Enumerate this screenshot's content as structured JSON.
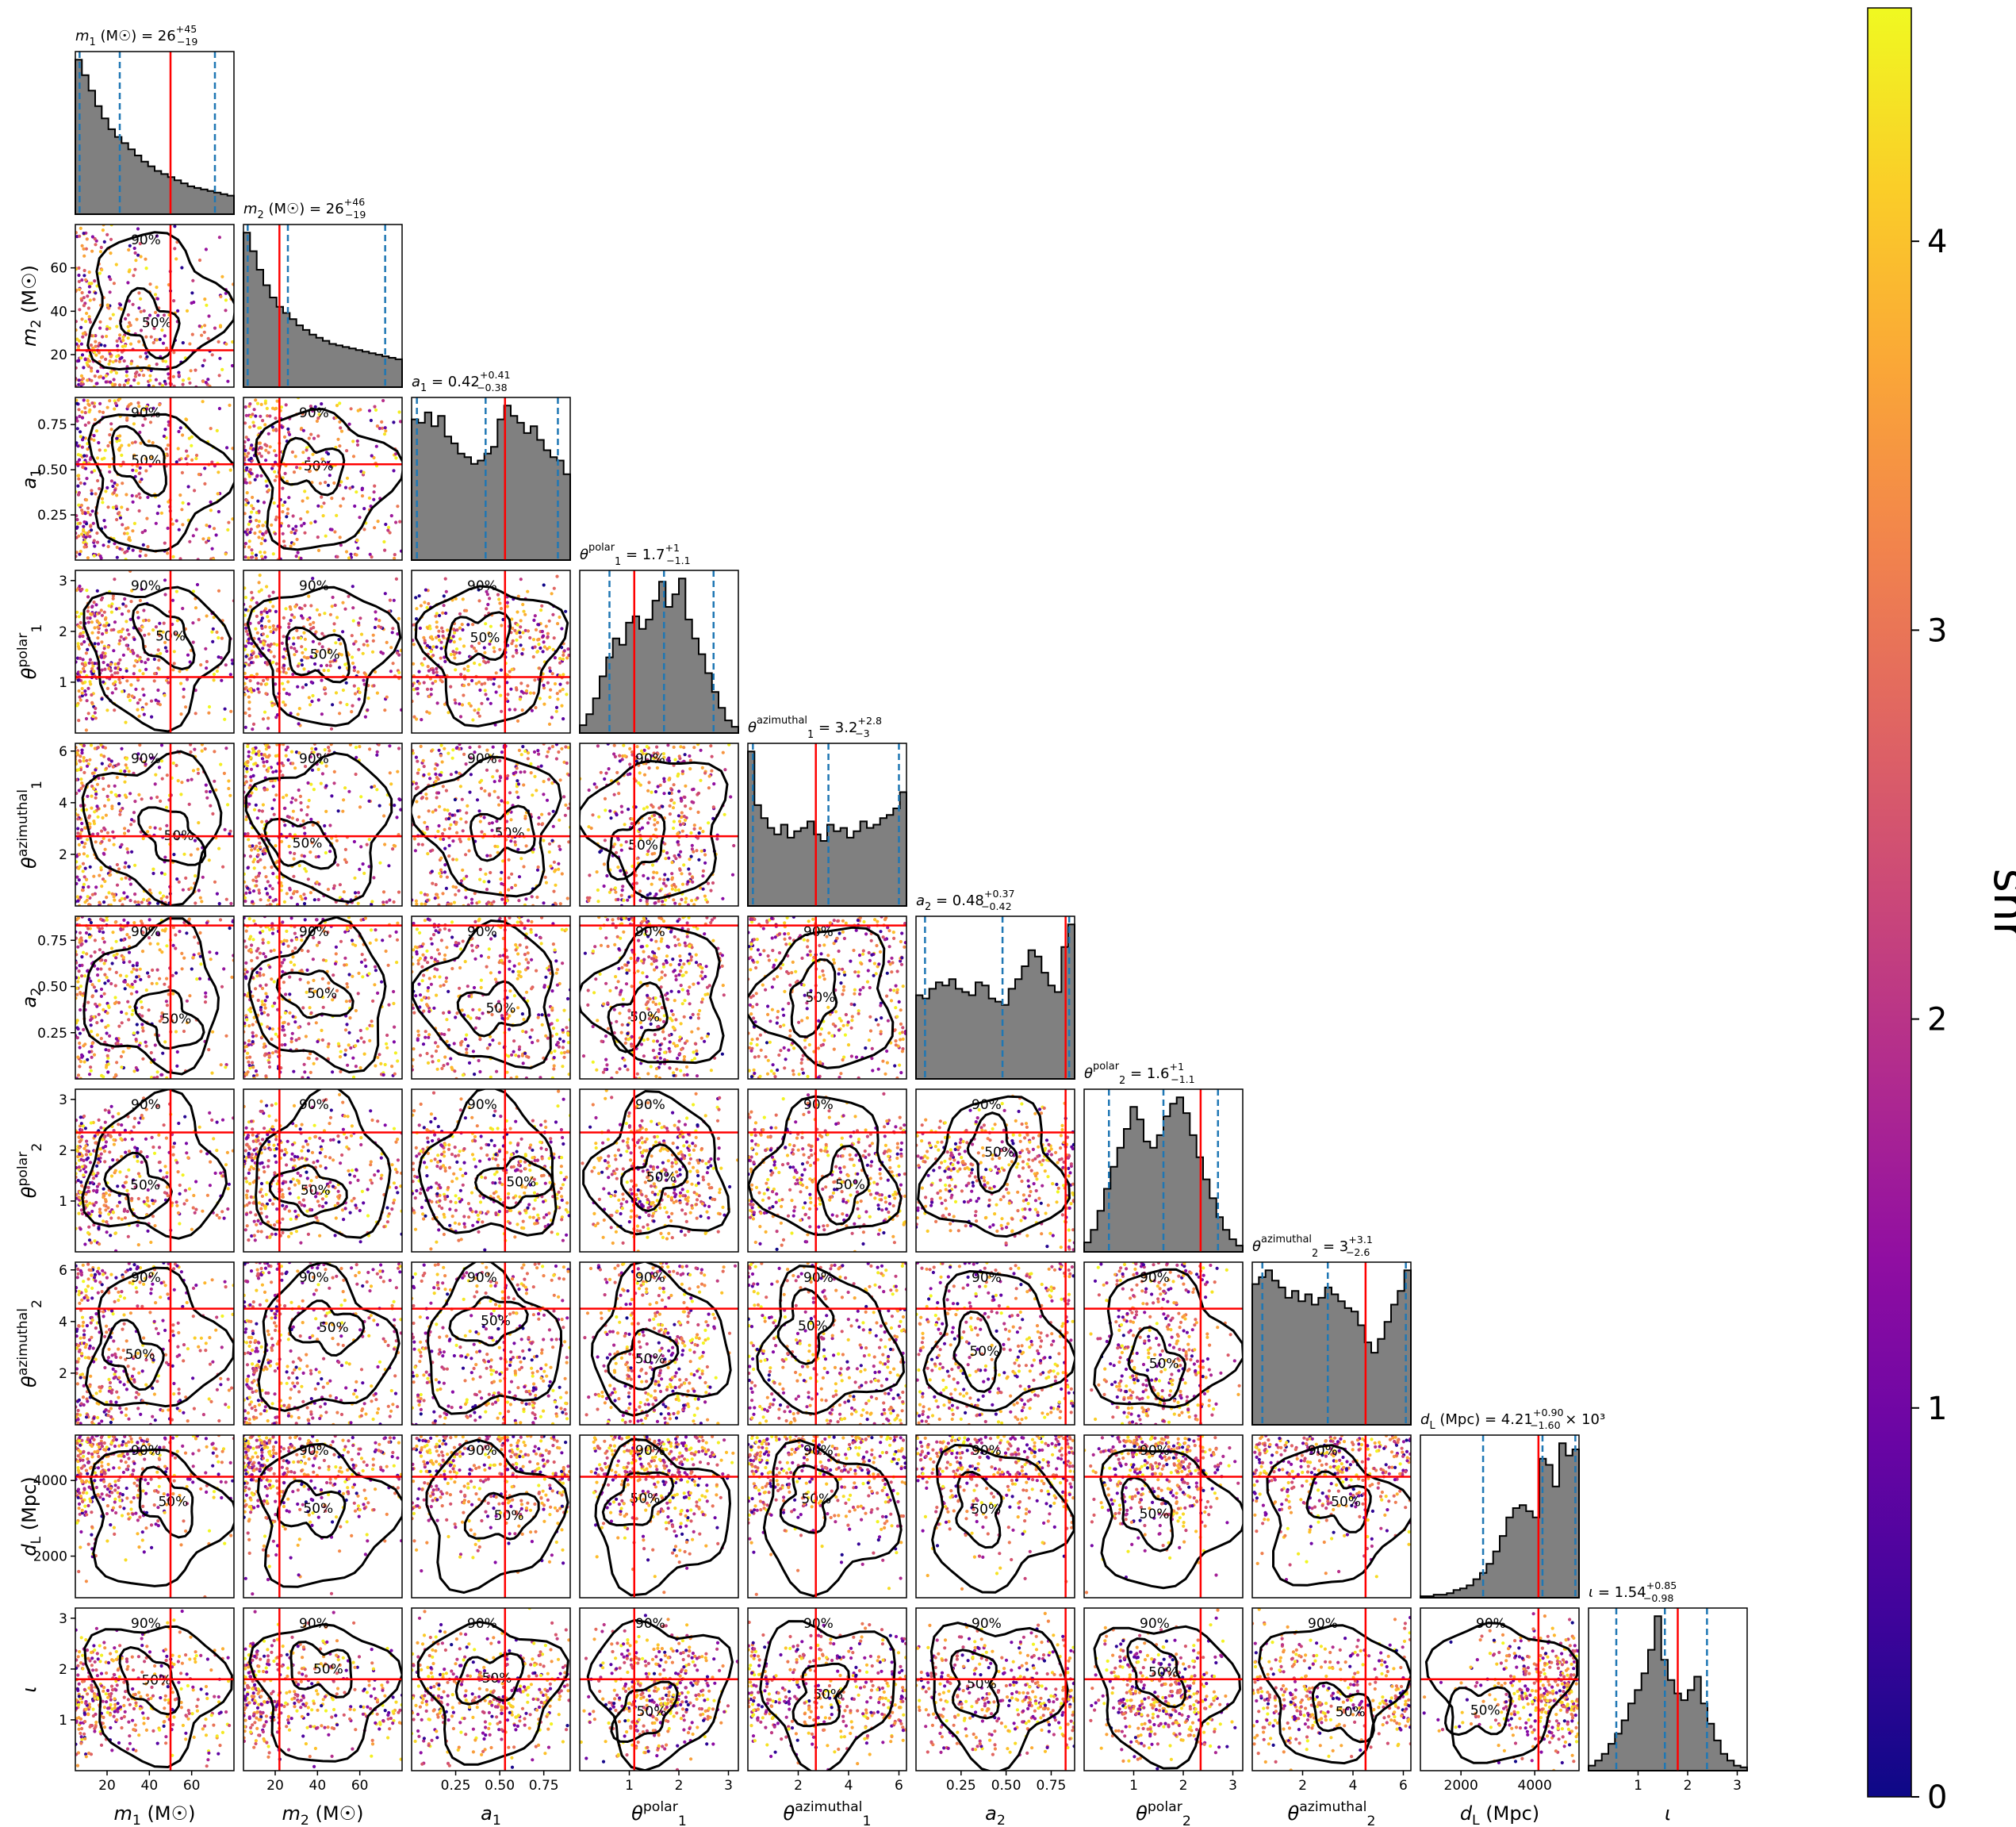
{
  "chart_data": {
    "type": "corner",
    "colormap": "plasma",
    "colors": {
      "histogram_fill": "#808080",
      "histogram_edge": "#000000",
      "truth_line": "#ff0000",
      "quantile_line": "#1f77b4",
      "contour": "#000000"
    },
    "colorbar": {
      "label": "snr",
      "range": [
        0,
        4.6
      ],
      "ticks": [
        "0",
        "1",
        "2",
        "3",
        "4"
      ]
    },
    "contour_levels": [
      "50%",
      "90%"
    ],
    "parameters": [
      {
        "key": "m1",
        "label": "m1 (M☉)",
        "label_main": "m",
        "label_sub": "1",
        "label_sup": "",
        "label_unit": " (M☉)",
        "title": "m1 (M☉) = 26 +45 −19",
        "title_main": "m",
        "title_sub": "1",
        "title_sup": "",
        "title_text": " (M☉) = 26",
        "title_plus": "+45",
        "title_minus": "−19",
        "title_suffix": "",
        "range": [
          5,
          80
        ],
        "ticks": [
          20,
          40,
          60
        ],
        "tick_labels": [
          "20",
          "40",
          "60"
        ],
        "truth": 50,
        "quantiles": [
          7,
          26,
          71
        ],
        "dist": "decreasing",
        "hist_shape": [
          100,
          90,
          80,
          70,
          62,
          55,
          50,
          46,
          42,
          38,
          34,
          31,
          28,
          26,
          24,
          22,
          20,
          18,
          17,
          16,
          15,
          14,
          13,
          12
        ]
      },
      {
        "key": "m2",
        "label": "m2 (M☉)",
        "label_main": "m",
        "label_sub": "2",
        "label_sup": "",
        "label_unit": " (M☉)",
        "title": "m2 (M☉) = 26 +46 −19",
        "title_main": "m",
        "title_sub": "2",
        "title_sup": "",
        "title_text": " (M☉) = 26",
        "title_plus": "+46",
        "title_minus": "−19",
        "title_suffix": "",
        "range": [
          5,
          80
        ],
        "ticks": [
          20,
          40,
          60
        ],
        "tick_labels": [
          "20",
          "40",
          "60"
        ],
        "truth": 22,
        "quantiles": [
          7,
          26,
          72
        ],
        "dist": "decreasing",
        "hist_shape": [
          100,
          88,
          76,
          66,
          58,
          52,
          48,
          44,
          40,
          37,
          34,
          32,
          30,
          28,
          27,
          26,
          25,
          24,
          23,
          22,
          21,
          20,
          19,
          18
        ]
      },
      {
        "key": "a1",
        "label": "a1",
        "label_main": "a",
        "label_sub": "1",
        "label_sup": "",
        "label_unit": "",
        "title": "a1 = 0.42 +0.41 −0.38",
        "title_main": "a",
        "title_sub": "1",
        "title_sup": "",
        "title_text": " = 0.42",
        "title_plus": "+0.41",
        "title_minus": "−0.38",
        "title_suffix": "",
        "range": [
          0,
          0.9
        ],
        "ticks": [
          0.25,
          0.5,
          0.75
        ],
        "tick_labels": [
          "0.25",
          "0.50",
          "0.75"
        ],
        "truth": 0.53,
        "quantiles": [
          0.03,
          0.42,
          0.83
        ],
        "dist": "uniform",
        "hist_shape": [
          82,
          80,
          86,
          78,
          84,
          72,
          68,
          62,
          60,
          56,
          58,
          62,
          66,
          82,
          90,
          84,
          80,
          74,
          78,
          70,
          64,
          60,
          58,
          50
        ]
      },
      {
        "key": "theta1_polar",
        "label": "θ1 polar",
        "label_main": "θ",
        "label_sub": "1",
        "label_sup": "polar",
        "label_unit": "",
        "title": "θ1 polar = 1.7 +1 −1.1",
        "title_main": "θ",
        "title_sub": "1",
        "title_sup": "polar",
        "title_text": " = 1.7",
        "title_plus": "+1",
        "title_minus": "−1.1",
        "title_suffix": "",
        "range": [
          0,
          3.2
        ],
        "ticks": [
          1,
          2,
          3
        ],
        "tick_labels": [
          "1",
          "2",
          "3"
        ],
        "truth": 1.1,
        "quantiles": [
          0.6,
          1.7,
          2.7
        ],
        "dist": "peaked",
        "hist_shape": [
          5,
          12,
          22,
          36,
          48,
          60,
          56,
          70,
          74,
          66,
          72,
          84,
          96,
          80,
          88,
          98,
          72,
          60,
          50,
          38,
          26,
          16,
          8,
          4
        ]
      },
      {
        "key": "theta1_azimuthal",
        "label": "θ1 azimuthal",
        "label_main": "θ",
        "label_sub": "1",
        "label_sup": "azimuthal",
        "label_unit": "",
        "title": "θ1 azimuthal = 3.2 +2.8 −3",
        "title_main": "θ",
        "title_sub": "1",
        "title_sup": "azimuthal",
        "title_text": " = 3.2",
        "title_plus": "+2.8",
        "title_minus": "−3",
        "title_suffix": "",
        "range": [
          0,
          6.3
        ],
        "ticks": [
          2,
          4,
          6
        ],
        "tick_labels": [
          "2",
          "4",
          "6"
        ],
        "truth": 2.7,
        "quantiles": [
          0.2,
          3.2,
          6.0
        ],
        "dist": "uniform",
        "hist_shape": [
          95,
          62,
          54,
          48,
          44,
          50,
          42,
          46,
          48,
          52,
          44,
          40,
          50,
          46,
          48,
          42,
          46,
          52,
          48,
          50,
          54,
          56,
          60,
          70
        ]
      },
      {
        "key": "a2",
        "label": "a2",
        "label_main": "a",
        "label_sub": "2",
        "label_sup": "",
        "label_unit": "",
        "title": "a2 = 0.48 +0.37 −0.42",
        "title_main": "a",
        "title_sub": "2",
        "title_sup": "",
        "title_text": " = 0.48",
        "title_plus": "+0.37",
        "title_minus": "−0.42",
        "title_suffix": "",
        "range": [
          0,
          0.88
        ],
        "ticks": [
          0.25,
          0.5,
          0.75
        ],
        "tick_labels": [
          "0.25",
          "0.50",
          "0.75"
        ],
        "truth": 0.83,
        "quantiles": [
          0.05,
          0.48,
          0.85
        ],
        "dist": "uniform",
        "hist_shape": [
          52,
          50,
          56,
          60,
          58,
          62,
          56,
          54,
          52,
          60,
          58,
          50,
          48,
          46,
          56,
          62,
          70,
          80,
          76,
          66,
          58,
          54,
          82,
          96
        ]
      },
      {
        "key": "theta2_polar",
        "label": "θ2 polar",
        "label_main": "θ",
        "label_sub": "2",
        "label_sup": "polar",
        "label_unit": "",
        "title": "θ2 polar = 1.6 +1 −1.1",
        "title_main": "θ",
        "title_sub": "2",
        "title_sup": "polar",
        "title_text": " = 1.6",
        "title_plus": "+1",
        "title_minus": "−1.1",
        "title_suffix": "",
        "range": [
          0,
          3.2
        ],
        "ticks": [
          1,
          2,
          3
        ],
        "tick_labels": [
          "1",
          "2",
          "3"
        ],
        "truth": 2.35,
        "quantiles": [
          0.5,
          1.6,
          2.7
        ],
        "dist": "peaked",
        "hist_shape": [
          6,
          14,
          26,
          40,
          54,
          66,
          78,
          92,
          84,
          70,
          66,
          74,
          86,
          94,
          98,
          88,
          74,
          60,
          46,
          34,
          22,
          14,
          8,
          4
        ]
      },
      {
        "key": "theta2_azimuthal",
        "label": "θ2 azimuthal",
        "label_main": "θ",
        "label_sub": "2",
        "label_sup": "azimuthal",
        "label_unit": "",
        "title": "θ2 azimuthal = 3 +3.1 −2.6",
        "title_main": "θ",
        "title_sub": "2",
        "title_sup": "azimuthal",
        "title_text": " = 3",
        "title_plus": "+3.1",
        "title_minus": "−2.6",
        "title_suffix": "",
        "range": [
          0,
          6.3
        ],
        "ticks": [
          2,
          4,
          6
        ],
        "tick_labels": [
          "2",
          "4",
          "6"
        ],
        "truth": 4.5,
        "quantiles": [
          0.4,
          3.0,
          6.1
        ],
        "dist": "uniform",
        "hist_shape": [
          82,
          86,
          90,
          84,
          80,
          74,
          78,
          72,
          76,
          70,
          74,
          80,
          76,
          72,
          68,
          66,
          58,
          48,
          42,
          50,
          60,
          70,
          78,
          90
        ]
      },
      {
        "key": "dL",
        "label": "dL (Mpc)",
        "label_main": "d",
        "label_sub": "L",
        "label_sup": "",
        "label_unit": " (Mpc)",
        "title": "dL (Mpc) = 4.21 +0.90 −1.60 ×10³",
        "title_main": "d",
        "title_sub": "L",
        "title_sup": "",
        "title_text": " (Mpc) = 4.21",
        "title_plus": "+0.90",
        "title_minus": "−1.60",
        "title_suffix": " × 10³",
        "range": [
          900,
          5200
        ],
        "ticks": [
          2000,
          4000
        ],
        "tick_labels": [
          "2000",
          "4000"
        ],
        "truth": 4100,
        "quantiles": [
          2600,
          4210,
          5100
        ],
        "dist": "rising",
        "hist_shape": [
          1,
          1,
          2,
          2,
          3,
          5,
          6,
          8,
          12,
          16,
          22,
          30,
          40,
          52,
          58,
          60,
          56,
          52,
          90,
          86,
          72,
          100,
          92,
          96
        ]
      },
      {
        "key": "iota",
        "label": "ι",
        "label_main": "ι",
        "label_sub": "",
        "label_sup": "",
        "label_unit": "",
        "title": "ι = 1.54 +0.85 −0.98",
        "title_main": "ι",
        "title_sub": "",
        "title_sup": "",
        "title_text": " = 1.54",
        "title_plus": "+0.85",
        "title_minus": "−0.98",
        "title_suffix": "",
        "range": [
          0,
          3.2
        ],
        "ticks": [
          1,
          2,
          3
        ],
        "tick_labels": [
          "1",
          "2",
          "3"
        ],
        "truth": 1.8,
        "quantiles": [
          0.56,
          1.54,
          2.39
        ],
        "dist": "peaked",
        "hist_shape": [
          3,
          6,
          10,
          16,
          22,
          30,
          40,
          48,
          58,
          72,
          92,
          66,
          54,
          46,
          42,
          48,
          56,
          40,
          28,
          18,
          10,
          6,
          3,
          2
        ]
      }
    ]
  }
}
